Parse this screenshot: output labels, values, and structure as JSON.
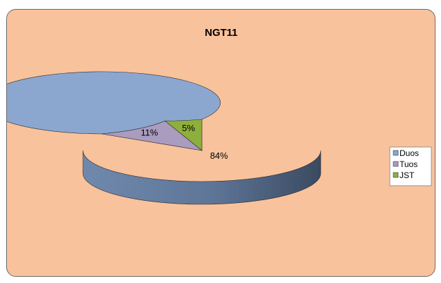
{
  "chart_data": {
    "type": "pie",
    "title": "NGT11",
    "three_d": true,
    "legend_position": "right",
    "slices": [
      {
        "label": "Duos",
        "value": 84,
        "value_label": "84%",
        "color": "#8ca7cf"
      },
      {
        "label": "Tuos",
        "value": 11,
        "value_label": "11%",
        "color": "#a99cbf"
      },
      {
        "label": "JST",
        "value": 5,
        "value_label": "5%",
        "color": "#8faf3c"
      }
    ],
    "background_color": "#f8c29c"
  }
}
